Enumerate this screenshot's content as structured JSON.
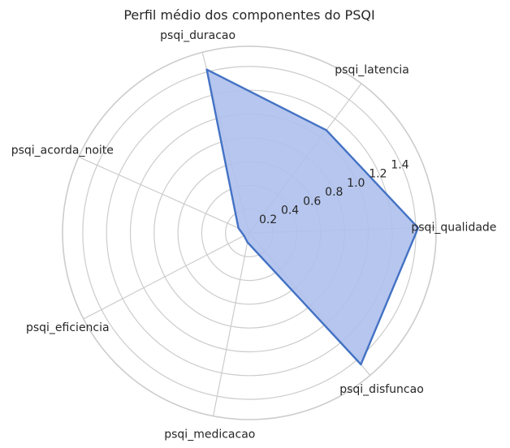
{
  "chart_data": {
    "type": "radar",
    "title": "Perfil médio dos componentes do PSQI",
    "categories": [
      "psqi_qualidade",
      "psqi_latencia",
      "psqi_duracao",
      "psqi_acorda_noite",
      "psqi_eficiencia",
      "psqi_medicacao",
      "psqi_disfuncao"
    ],
    "series": [
      {
        "values": [
          1.42,
          1.08,
          1.42,
          0.1,
          0.05,
          0.08,
          1.45
        ]
      }
    ],
    "rlim": [
      0,
      1.57
    ],
    "rticks": [
      "0.2",
      "0.4",
      "0.6",
      "0.8",
      "1.0",
      "1.2",
      "1.4"
    ],
    "rtick_values": [
      0.2,
      0.4,
      0.6,
      0.8,
      1.0,
      1.2,
      1.4
    ],
    "grid": true,
    "colors": {
      "line": "#4472c4",
      "fill": "#aec0ec",
      "grid": "#cccccc"
    }
  }
}
